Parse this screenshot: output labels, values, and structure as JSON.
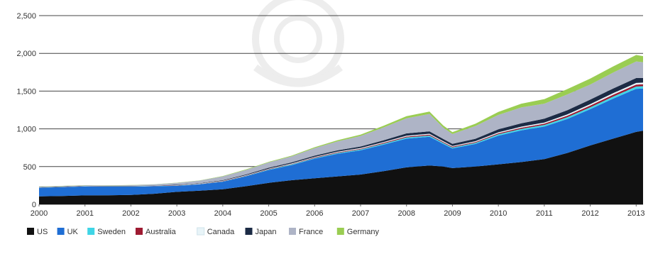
{
  "chart_data": {
    "type": "area",
    "stacked": true,
    "title": "",
    "xlabel": "",
    "ylabel": "",
    "xlim": [
      2000,
      2013.15
    ],
    "ylim": [
      0,
      2500
    ],
    "grid": true,
    "legend_position": "bottom-left",
    "x_ticks": [
      "2000",
      "2001",
      "2002",
      "2003",
      "2004",
      "2005",
      "2006",
      "2007",
      "2008",
      "2009",
      "2010",
      "2011",
      "2012",
      "2013"
    ],
    "y_ticks": [
      "0",
      "500",
      "1,000",
      "1,500",
      "2,000",
      "2,500"
    ],
    "x": [
      2000,
      2000.5,
      2001,
      2001.5,
      2002,
      2002.5,
      2003,
      2003.5,
      2004,
      2004.5,
      2005,
      2005.5,
      2006,
      2006.5,
      2007,
      2007.5,
      2008,
      2008.5,
      2008.8,
      2009,
      2009.5,
      2010,
      2010.5,
      2011,
      2011.5,
      2012,
      2012.5,
      2013,
      2013.15
    ],
    "series": [
      {
        "name": "US",
        "color": "#111111",
        "values": [
          105,
          110,
          118,
          120,
          125,
          140,
          165,
          180,
          200,
          240,
          285,
          320,
          345,
          370,
          395,
          440,
          490,
          515,
          500,
          480,
          500,
          530,
          560,
          600,
          680,
          780,
          870,
          960,
          975
        ]
      },
      {
        "name": "UK",
        "color": "#1f6ed4",
        "values": [
          115,
          118,
          120,
          115,
          110,
          100,
          80,
          85,
          100,
          130,
          170,
          200,
          260,
          300,
          320,
          350,
          380,
          380,
          300,
          260,
          300,
          380,
          420,
          430,
          450,
          480,
          530,
          570,
          560
        ]
      },
      {
        "name": "Sweden",
        "color": "#3fd5e6",
        "values": [
          2,
          2,
          2,
          2,
          2,
          2,
          3,
          3,
          4,
          5,
          6,
          8,
          9,
          10,
          12,
          14,
          16,
          16,
          14,
          13,
          14,
          18,
          20,
          22,
          24,
          26,
          28,
          30,
          30
        ]
      },
      {
        "name": "Australia",
        "color": "#9e1b32",
        "values": [
          2,
          2,
          2,
          2,
          2,
          2,
          3,
          3,
          4,
          5,
          6,
          6,
          7,
          8,
          9,
          10,
          12,
          12,
          11,
          10,
          11,
          13,
          15,
          17,
          20,
          22,
          24,
          26,
          26
        ]
      },
      {
        "name": "Canada",
        "color": "#e8f4f8",
        "values": [
          2,
          2,
          2,
          2,
          2,
          2,
          3,
          3,
          4,
          5,
          6,
          7,
          8,
          9,
          10,
          11,
          12,
          12,
          11,
          10,
          11,
          13,
          14,
          15,
          17,
          19,
          21,
          22,
          22
        ]
      },
      {
        "name": "Japan",
        "color": "#1c2b45",
        "values": [
          3,
          3,
          3,
          3,
          3,
          3,
          5,
          6,
          8,
          10,
          12,
          14,
          16,
          18,
          20,
          24,
          30,
          32,
          30,
          28,
          32,
          40,
          45,
          50,
          55,
          60,
          62,
          65,
          60
        ]
      },
      {
        "name": "France",
        "color": "#aeb4c6",
        "values": [
          5,
          5,
          5,
          5,
          10,
          15,
          25,
          35,
          50,
          60,
          70,
          80,
          100,
          120,
          140,
          170,
          200,
          230,
          150,
          130,
          170,
          190,
          210,
          200,
          210,
          200,
          210,
          220,
          210
        ]
      },
      {
        "name": "Germany",
        "color": "#9acd52",
        "values": [
          2,
          2,
          2,
          2,
          2,
          2,
          3,
          3,
          5,
          6,
          8,
          10,
          12,
          15,
          18,
          22,
          28,
          32,
          28,
          25,
          30,
          40,
          50,
          60,
          70,
          78,
          82,
          85,
          80
        ]
      }
    ]
  }
}
